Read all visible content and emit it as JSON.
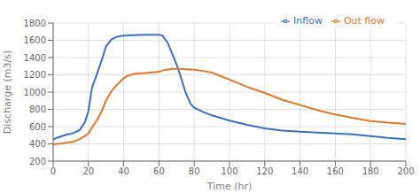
{
  "chart_data": {
    "type": "line",
    "xlabel": "Time (hr)",
    "ylabel": "Discharge (m3/s)",
    "x": [
      0,
      2,
      5,
      8,
      10,
      12,
      15,
      18,
      20,
      22,
      25,
      28,
      30,
      33,
      36,
      38,
      40,
      42,
      44,
      46,
      48,
      50,
      52,
      55,
      58,
      60,
      62,
      65,
      68,
      70,
      72,
      75,
      78,
      80,
      85,
      90,
      95,
      100,
      110,
      120,
      130,
      140,
      150,
      160,
      170,
      180,
      190,
      200
    ],
    "series": [
      {
        "name": "Inflow",
        "color": "#3a6fc4",
        "values": [
          450,
          470,
          490,
          510,
          515,
          530,
          560,
          650,
          780,
          1050,
          1220,
          1400,
          1530,
          1610,
          1640,
          1648,
          1653,
          1655,
          1658,
          1660,
          1662,
          1662,
          1663,
          1664,
          1665,
          1664,
          1655,
          1570,
          1420,
          1320,
          1200,
          1000,
          860,
          820,
          770,
          730,
          700,
          670,
          620,
          580,
          555,
          540,
          530,
          520,
          510,
          490,
          470,
          455
        ]
      },
      {
        "name": "Out flow",
        "color": "#e07828",
        "values": [
          395,
          400,
          405,
          415,
          420,
          430,
          455,
          490,
          520,
          590,
          680,
          800,
          900,
          1010,
          1080,
          1120,
          1160,
          1185,
          1200,
          1210,
          1215,
          1218,
          1220,
          1225,
          1230,
          1235,
          1250,
          1262,
          1268,
          1270,
          1268,
          1265,
          1262,
          1258,
          1245,
          1225,
          1185,
          1145,
          1060,
          990,
          910,
          850,
          790,
          740,
          700,
          665,
          645,
          630
        ]
      }
    ],
    "xlim": [
      0,
      200
    ],
    "ylim": [
      200,
      1800
    ],
    "xticks": [
      0,
      20,
      40,
      60,
      80,
      100,
      120,
      140,
      160,
      180,
      200
    ],
    "yticks": [
      200,
      400,
      600,
      800,
      1000,
      1200,
      1400,
      1600,
      1800
    ],
    "grid": true,
    "legend": "upper right"
  }
}
